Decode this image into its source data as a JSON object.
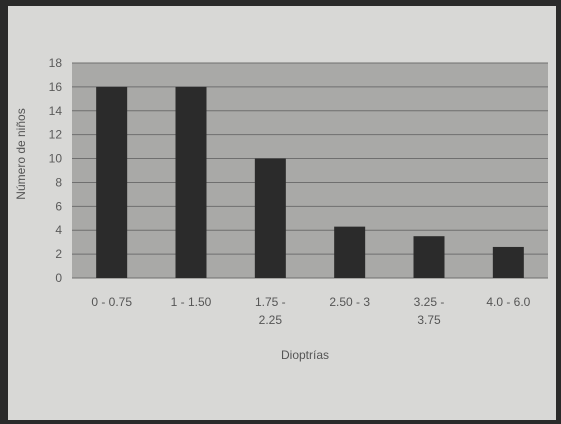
{
  "chart_data": {
    "type": "bar",
    "categories": [
      "0 - 0.75",
      "1 - 1.50",
      "1.75 -\n2.25",
      "2.50 - 3",
      "3.25 -\n3.75",
      "4.0 - 6.0"
    ],
    "values": [
      16,
      16,
      10,
      4.3,
      3.5,
      2.6
    ],
    "xlabel": "Dioptrías",
    "ylabel": "Número de niños",
    "ylim": [
      0,
      18
    ],
    "yticks": [
      0,
      2,
      4,
      6,
      8,
      10,
      12,
      14,
      16,
      18
    ],
    "grid": true,
    "legend": "none",
    "colors": {
      "bar": "#2b2b2b",
      "plot_bg": "#a9a9a7",
      "grid": "#6f6f6f"
    }
  }
}
